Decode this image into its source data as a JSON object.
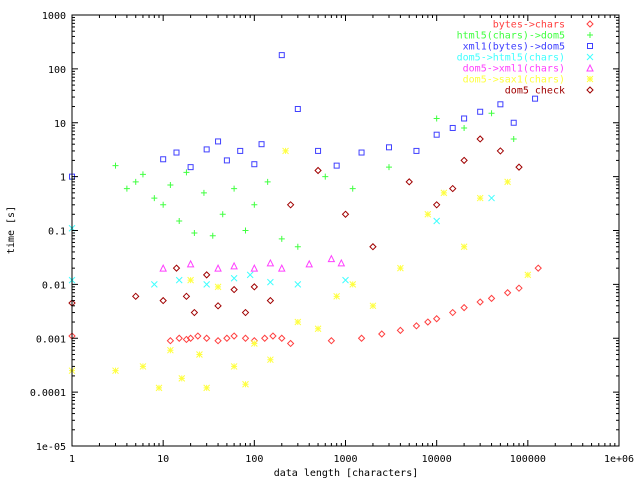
{
  "chart_data": {
    "type": "scatter",
    "xlabel": "data length [characters]",
    "ylabel": "time [s]",
    "xscale": "log",
    "yscale": "log",
    "xlim": [
      1,
      1000000
    ],
    "ylim": [
      1e-05,
      1000
    ],
    "grid": false,
    "legend_position": "top-right",
    "x_tick_labels": [
      "1",
      "10",
      "100",
      "1000",
      "10000",
      "100000",
      "1e+06"
    ],
    "y_tick_labels": [
      "1e-05",
      "0.0001",
      "0.001",
      "0.01",
      "0.1",
      "1",
      "10",
      "100",
      "1000"
    ],
    "series": [
      {
        "name": "bytes->chars",
        "marker": "diamond",
        "color": "#ff4040",
        "points": [
          [
            1,
            0.0011
          ],
          [
            12,
            0.0009
          ],
          [
            15,
            0.001
          ],
          [
            18,
            0.00095
          ],
          [
            20,
            0.001
          ],
          [
            24,
            0.0011
          ],
          [
            30,
            0.001
          ],
          [
            40,
            0.0009
          ],
          [
            50,
            0.001
          ],
          [
            60,
            0.0011
          ],
          [
            80,
            0.001
          ],
          [
            100,
            0.0009
          ],
          [
            130,
            0.001
          ],
          [
            160,
            0.0011
          ],
          [
            200,
            0.001
          ],
          [
            250,
            0.0008
          ],
          [
            700,
            0.0009
          ],
          [
            1500,
            0.001
          ],
          [
            2500,
            0.0012
          ],
          [
            4000,
            0.0014
          ],
          [
            6000,
            0.0017
          ],
          [
            8000,
            0.002
          ],
          [
            10000,
            0.0023
          ],
          [
            15000,
            0.003
          ],
          [
            20000,
            0.0037
          ],
          [
            30000,
            0.0047
          ],
          [
            40000,
            0.0055
          ],
          [
            60000,
            0.007
          ],
          [
            80000,
            0.0085
          ],
          [
            130000,
            0.02
          ]
        ]
      },
      {
        "name": "html5(chars)->dom5",
        "marker": "plus",
        "color": "#40ff40",
        "points": [
          [
            1,
            0.9
          ],
          [
            3,
            1.6
          ],
          [
            4,
            0.6
          ],
          [
            5,
            0.8
          ],
          [
            6,
            1.1
          ],
          [
            8,
            0.4
          ],
          [
            10,
            0.3
          ],
          [
            12,
            0.7
          ],
          [
            15,
            0.15
          ],
          [
            18,
            1.2
          ],
          [
            22,
            0.09
          ],
          [
            28,
            0.5
          ],
          [
            35,
            0.08
          ],
          [
            45,
            0.2
          ],
          [
            60,
            0.6
          ],
          [
            80,
            0.1
          ],
          [
            100,
            0.3
          ],
          [
            140,
            0.8
          ],
          [
            200,
            0.07
          ],
          [
            300,
            0.05
          ],
          [
            600,
            1.0
          ],
          [
            1200,
            0.6
          ],
          [
            3000,
            1.5
          ],
          [
            10000,
            12
          ],
          [
            20000,
            8
          ],
          [
            40000,
            15
          ],
          [
            70000,
            5
          ]
        ]
      },
      {
        "name": "xml1(bytes)->dom5",
        "marker": "square",
        "color": "#4040ff",
        "points": [
          [
            1,
            1.0
          ],
          [
            10,
            2.1
          ],
          [
            14,
            2.8
          ],
          [
            20,
            1.5
          ],
          [
            30,
            3.2
          ],
          [
            40,
            4.5
          ],
          [
            50,
            2.0
          ],
          [
            70,
            3.0
          ],
          [
            100,
            1.7
          ],
          [
            120,
            4.0
          ],
          [
            200,
            180
          ],
          [
            300,
            18
          ],
          [
            500,
            3.0
          ],
          [
            800,
            1.6
          ],
          [
            1500,
            2.8
          ],
          [
            3000,
            3.5
          ],
          [
            6000,
            3.0
          ],
          [
            10000,
            6.0
          ],
          [
            15000,
            8.0
          ],
          [
            20000,
            12
          ],
          [
            30000,
            16
          ],
          [
            50000,
            22
          ],
          [
            70000,
            10
          ],
          [
            120000,
            28
          ]
        ]
      },
      {
        "name": "dom5->html5(chars)",
        "marker": "cross",
        "color": "#40ffff",
        "points": [
          [
            1,
            0.11
          ],
          [
            1,
            0.012
          ],
          [
            8,
            0.01
          ],
          [
            15,
            0.012
          ],
          [
            30,
            0.01
          ],
          [
            60,
            0.013
          ],
          [
            90,
            0.015
          ],
          [
            150,
            0.011
          ],
          [
            300,
            0.01
          ],
          [
            1000,
            0.012
          ],
          [
            10000,
            0.15
          ],
          [
            40000,
            0.4
          ]
        ]
      },
      {
        "name": "dom5->xml1(chars)",
        "marker": "triangle",
        "color": "#ff40ff",
        "points": [
          [
            10,
            0.02
          ],
          [
            20,
            0.024
          ],
          [
            40,
            0.02
          ],
          [
            60,
            0.022
          ],
          [
            100,
            0.02
          ],
          [
            150,
            0.025
          ],
          [
            200,
            0.02
          ],
          [
            400,
            0.024
          ],
          [
            700,
            0.03
          ],
          [
            900,
            0.025
          ]
        ]
      },
      {
        "name": "dom5->sax1(chars)",
        "marker": "star",
        "color": "#ffff40",
        "points": [
          [
            1,
            0.00025
          ],
          [
            3,
            0.00025
          ],
          [
            6,
            0.0003
          ],
          [
            9,
            0.00012
          ],
          [
            12,
            0.0006
          ],
          [
            16,
            0.00018
          ],
          [
            20,
            0.012
          ],
          [
            25,
            0.0005
          ],
          [
            30,
            0.00012
          ],
          [
            40,
            0.009
          ],
          [
            60,
            0.0003
          ],
          [
            80,
            0.00014
          ],
          [
            100,
            0.0008
          ],
          [
            150,
            0.0004
          ],
          [
            220,
            3.0
          ],
          [
            300,
            0.002
          ],
          [
            500,
            0.0015
          ],
          [
            800,
            0.006
          ],
          [
            1200,
            0.01
          ],
          [
            2000,
            0.004
          ],
          [
            4000,
            0.02
          ],
          [
            8000,
            0.2
          ],
          [
            12000,
            0.5
          ],
          [
            20000,
            0.05
          ],
          [
            30000,
            0.4
          ],
          [
            60000,
            0.8
          ],
          [
            100000,
            0.015
          ]
        ]
      },
      {
        "name": "dom5 check",
        "marker": "diamond",
        "color": "#a00000",
        "points": [
          [
            1,
            0.0045
          ],
          [
            5,
            0.006
          ],
          [
            10,
            0.005
          ],
          [
            14,
            0.02
          ],
          [
            18,
            0.006
          ],
          [
            22,
            0.003
          ],
          [
            30,
            0.015
          ],
          [
            40,
            0.004
          ],
          [
            60,
            0.008
          ],
          [
            80,
            0.003
          ],
          [
            100,
            0.009
          ],
          [
            150,
            0.005
          ],
          [
            250,
            0.3
          ],
          [
            500,
            1.3
          ],
          [
            1000,
            0.2
          ],
          [
            2000,
            0.05
          ],
          [
            5000,
            0.8
          ],
          [
            10000,
            0.3
          ],
          [
            15000,
            0.6
          ],
          [
            20000,
            2.0
          ],
          [
            30000,
            5.0
          ],
          [
            50000,
            3.0
          ],
          [
            80000,
            1.5
          ]
        ]
      }
    ]
  }
}
